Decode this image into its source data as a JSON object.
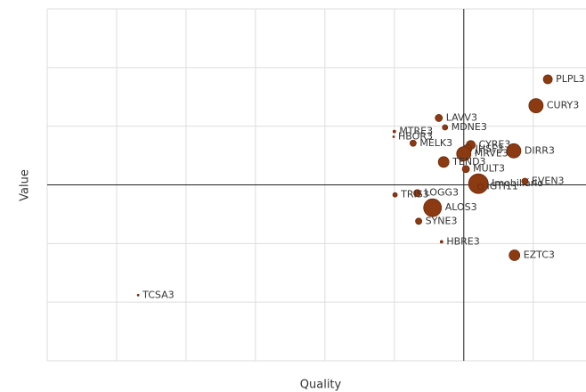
{
  "chart_data": {
    "type": "scatter",
    "x_label": "Quality",
    "y_label": "Value",
    "xlim": [
      -6,
      1.76
    ],
    "ylim": [
      -3,
      3
    ],
    "xticks": [
      -6,
      -5,
      -4,
      -3,
      -2,
      -1,
      0,
      1
    ],
    "yticks": [
      -3,
      -2,
      -1,
      0,
      1,
      2,
      3
    ],
    "grid": true,
    "color": "#8b3a12",
    "series": [
      {
        "name": null,
        "labels": [
          "PLPL3",
          "CURY3",
          "LAVV3",
          "MTRE3",
          "MDNE3",
          "HBOR3",
          "CYRE3",
          "MELK3",
          "JHSF3",
          "DIRR3",
          "MRVE3",
          "TEND3",
          "MULT3",
          "Imobiliário",
          "IGTI11",
          "EVEN3",
          "LOGG3",
          "TRIS3",
          "ALOS3",
          "SYNE3",
          "HBRE3",
          "EZTC3",
          "TCSA3"
        ],
        "x": [
          1.21,
          1.04,
          -0.36,
          -1.0,
          -0.27,
          -1.01,
          0.1,
          -0.73,
          0.05,
          0.72,
          0.0,
          -0.29,
          0.03,
          0.21,
          0.24,
          0.88,
          -0.67,
          -0.99,
          -0.45,
          -0.65,
          -0.32,
          0.73,
          -4.69
        ],
        "values": [
          1.8,
          1.35,
          1.14,
          0.91,
          0.98,
          0.82,
          0.68,
          0.71,
          0.61,
          0.58,
          0.53,
          0.39,
          0.27,
          0.02,
          -0.03,
          0.06,
          -0.14,
          -0.17,
          -0.39,
          -0.62,
          -0.97,
          -1.2,
          -1.88
        ],
        "sizes": [
          5,
          8,
          4,
          1.5,
          3,
          1,
          5,
          3.5,
          5,
          8,
          8,
          6,
          4,
          11,
          3,
          3.5,
          4,
          2.5,
          10,
          3.5,
          1.5,
          6,
          1
        ]
      }
    ]
  }
}
